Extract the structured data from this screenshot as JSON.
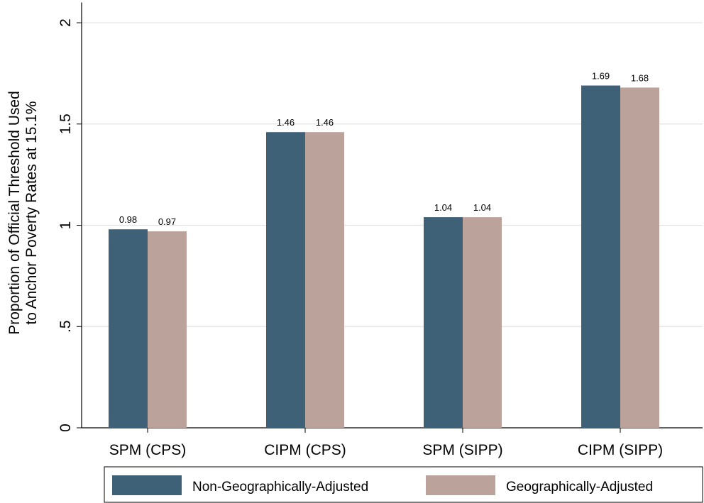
{
  "chart_data": {
    "type": "bar",
    "ylabel": [
      "Proportion of Official Threshold Used",
      "to Anchor Poverty Rates at 15.1%"
    ],
    "categories": [
      "SPM (CPS)",
      "CIPM (CPS)",
      "SPM (SIPP)",
      "CIPM (SIPP)"
    ],
    "series": [
      {
        "name": "Non-Geographically-Adjusted",
        "color": "#3f6178",
        "values": [
          0.98,
          1.46,
          1.04,
          1.69
        ]
      },
      {
        "name": "Geographically-Adjusted",
        "color": "#bba39b",
        "values": [
          0.97,
          1.46,
          1.04,
          1.68
        ]
      }
    ],
    "ylim": [
      0,
      2.1
    ],
    "yticks": [
      0,
      {
        "value": 0.5,
        "label": ".5"
      },
      1,
      1.5,
      2
    ],
    "grid": true,
    "legend": "bottom"
  }
}
